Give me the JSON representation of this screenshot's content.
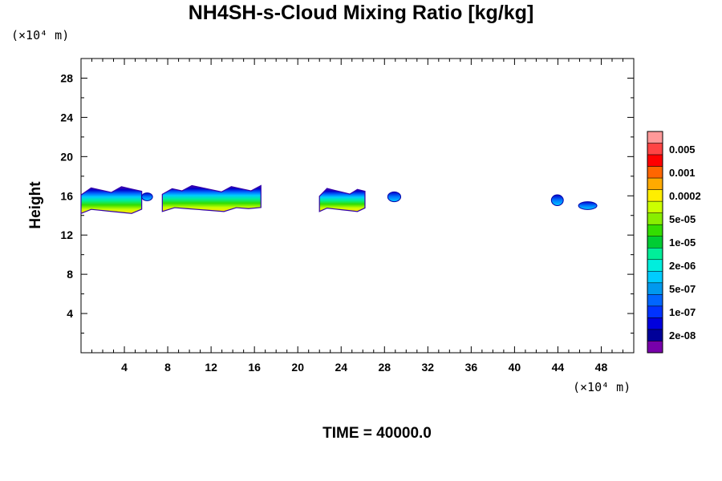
{
  "title": "NH4SH-s-Cloud Mixing Ratio [kg/kg]",
  "time_label": "TIME = 40000.0",
  "chart_data": {
    "type": "heatmap",
    "title": "NH4SH-s-Cloud Mixing Ratio [kg/kg]",
    "xlabel": "",
    "ylabel": "Height",
    "x_unit": "(×10⁴ m)",
    "y_unit": "(×10⁴ m)",
    "xlim": [
      0,
      51
    ],
    "ylim": [
      0,
      30
    ],
    "xticks": [
      4,
      8,
      12,
      16,
      20,
      24,
      28,
      32,
      36,
      40,
      44,
      48
    ],
    "yticks": [
      4,
      8,
      12,
      16,
      20,
      24,
      28
    ],
    "colorbar": {
      "labels": [
        "0.005",
        "0.001",
        "0.0002",
        "5e-05",
        "1e-05",
        "2e-06",
        "5e-07",
        "1e-07",
        "2e-08"
      ],
      "colors": [
        "#ff9999",
        "#ff4444",
        "#ff0000",
        "#ff6600",
        "#ffaa00",
        "#ffee00",
        "#ccff00",
        "#88ee00",
        "#33dd00",
        "#00cc33",
        "#00ee99",
        "#00eedd",
        "#00ccff",
        "#0099ee",
        "#0066ff",
        "#0033ff",
        "#0000dd",
        "#000099",
        "#7700aa"
      ]
    },
    "cloud_regions": [
      {
        "x_start": 0.0,
        "x_end": 5.6,
        "y_bottom": 14.2,
        "y_top": 17.1,
        "max_level": "0.0002"
      },
      {
        "x_start": 5.6,
        "x_end": 6.6,
        "y_bottom": 15.5,
        "y_top": 16.3,
        "max_level": "1e-07"
      },
      {
        "x_start": 7.5,
        "x_end": 16.6,
        "y_bottom": 14.4,
        "y_top": 17.1,
        "max_level": "5e-05"
      },
      {
        "x_start": 22.0,
        "x_end": 26.2,
        "y_bottom": 14.4,
        "y_top": 16.8,
        "max_level": "5e-05"
      },
      {
        "x_start": 28.3,
        "x_end": 29.5,
        "y_bottom": 15.4,
        "y_top": 16.4,
        "max_level": "5e-07"
      },
      {
        "x_start": 43.4,
        "x_end": 44.5,
        "y_bottom": 15.0,
        "y_top": 16.1,
        "max_level": "5e-07"
      },
      {
        "x_start": 45.9,
        "x_end": 47.6,
        "y_bottom": 14.6,
        "y_top": 15.4,
        "max_level": "5e-07"
      }
    ]
  }
}
